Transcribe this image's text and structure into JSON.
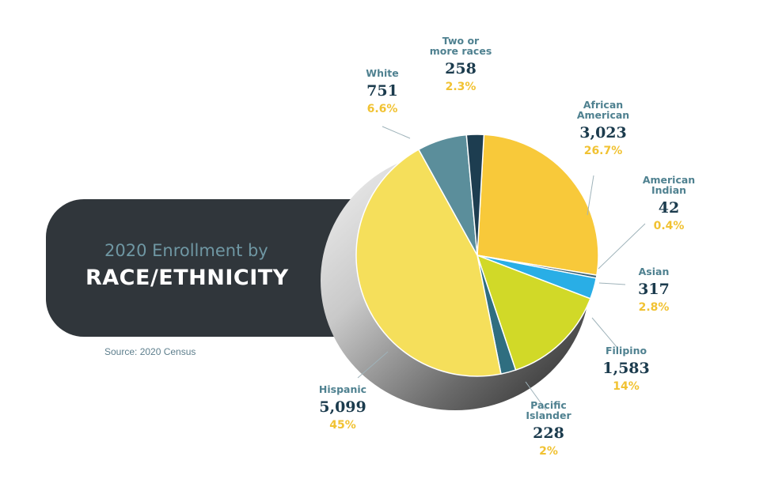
{
  "header": {
    "subtitle": "2020 Enrollment by",
    "title": "RACE/ETHNICITY"
  },
  "source": "Source: 2020 Census",
  "colors": {
    "banner": "#30363b",
    "name": "#4f8190",
    "count": "#1b3b4d",
    "percent": "#f1c232"
  },
  "chart_data": {
    "type": "pie",
    "title": "2020 Enrollment by RACE/ETHNICITY",
    "slices": [
      {
        "label": "African American",
        "count": "3,023",
        "pct_label": "26.7%",
        "value": 26.7,
        "color": "#f8c93a"
      },
      {
        "label": "American Indian",
        "count": "42",
        "pct_label": "0.4%",
        "value": 0.4,
        "color": "#3f6677"
      },
      {
        "label": "Asian",
        "count": "317",
        "pct_label": "2.8%",
        "value": 2.8,
        "color": "#29aee6"
      },
      {
        "label": "Filipino",
        "count": "1,583",
        "pct_label": "14%",
        "value": 14,
        "color": "#d1d928"
      },
      {
        "label": "Pacific Islander",
        "count": "228",
        "pct_label": "2%",
        "value": 2,
        "color": "#2f6e80"
      },
      {
        "label": "Hispanic",
        "count": "5,099",
        "pct_label": "45%",
        "value": 45,
        "color": "#f5df5b"
      },
      {
        "label": "White",
        "count": "751",
        "pct_label": "6.6%",
        "value": 6.6,
        "color": "#5b8e9b"
      },
      {
        "label": "Two or more races",
        "count": "258",
        "pct_label": "2.3%",
        "value": 2.3,
        "color": "#1d3d50"
      }
    ]
  }
}
